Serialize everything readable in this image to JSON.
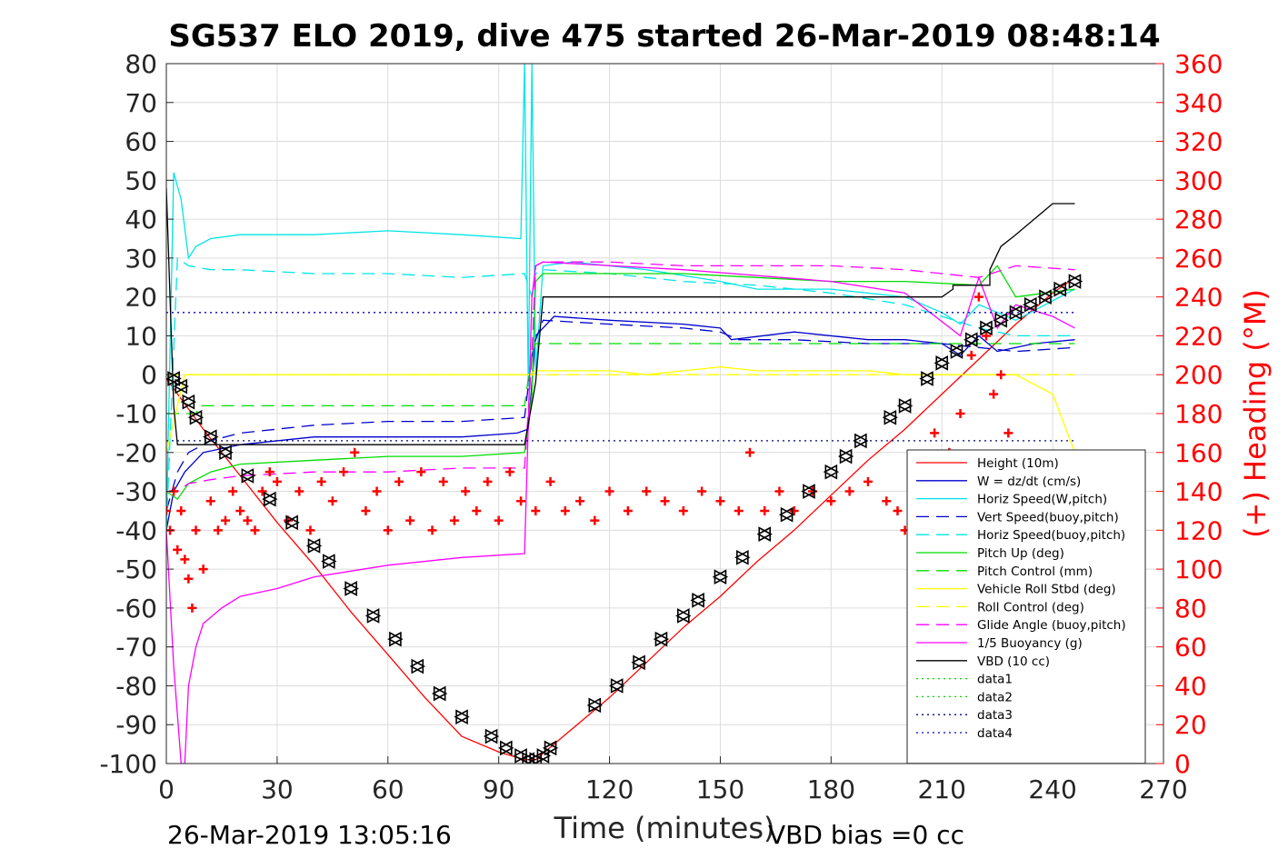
{
  "chart_data": {
    "type": "line",
    "title": "SG537 ELO 2019, dive 475 started 26-Mar-2019 08:48:14",
    "xlabel": "Time (minutes)",
    "ylabel": "",
    "y2label": "(+) Heading (°M)",
    "xlim": [
      0,
      270
    ],
    "ylim": [
      -100,
      80
    ],
    "y2lim": [
      0,
      360
    ],
    "xticks": [
      "0",
      "30",
      "60",
      "90",
      "120",
      "150",
      "180",
      "210",
      "240",
      "270"
    ],
    "yticks": [
      "80",
      "70",
      "60",
      "50",
      "40",
      "30",
      "20",
      "10",
      "0",
      "-10",
      "-20",
      "-30",
      "-40",
      "-50",
      "-60",
      "-70",
      "-80",
      "-90",
      "-100"
    ],
    "y2ticks": [
      "360",
      "340",
      "320",
      "300",
      "280",
      "260",
      "240",
      "220",
      "200",
      "180",
      "160",
      "140",
      "120",
      "100",
      "80",
      "60",
      "40",
      "20",
      "0"
    ],
    "grid": true,
    "legend_position": "bottom-right",
    "footer_left": "26-Mar-2019 13:05:16",
    "footer_right": "VBD bias =0 cc",
    "series": [
      {
        "name": "Height (10m)",
        "color": "#ff0000",
        "style": "solid",
        "x": [
          0,
          10,
          20,
          30,
          40,
          50,
          60,
          70,
          80,
          90,
          97,
          100,
          110,
          120,
          130,
          140,
          150,
          160,
          170,
          180,
          190,
          200,
          210,
          220,
          230,
          240,
          246
        ],
        "y": [
          -1,
          -14,
          -26,
          -38,
          -49,
          -61,
          -72,
          -83,
          -93,
          -97,
          -99,
          -99,
          -91,
          -83,
          -74,
          -65,
          -57,
          -48,
          -40,
          -31,
          -22,
          -14,
          -5,
          4,
          13,
          21,
          25
        ]
      },
      {
        "name": "W = dz/dt (cm/s)",
        "color": "#0000cc",
        "style": "solid",
        "x": [
          0,
          2,
          5,
          10,
          20,
          40,
          60,
          80,
          95,
          98,
          100,
          105,
          120,
          140,
          150,
          153,
          170,
          190,
          200,
          210,
          215,
          220,
          225,
          235,
          246
        ],
        "y": [
          -40,
          -30,
          -25,
          -20,
          -18,
          -16,
          -16,
          -16,
          -15,
          -14,
          10,
          15,
          14,
          13,
          12,
          9,
          11,
          9,
          9,
          8,
          5,
          10,
          6,
          8,
          9
        ]
      },
      {
        "name": "Horiz Speed(W,pitch)",
        "color": "#00e5e5",
        "style": "solid",
        "x": [
          0,
          2,
          4,
          6,
          8,
          12,
          20,
          40,
          60,
          80,
          96,
          97,
          98,
          99,
          100,
          102,
          110,
          130,
          150,
          160,
          180,
          200,
          210,
          215,
          220,
          230,
          246
        ],
        "y": [
          -40,
          52,
          45,
          30,
          33,
          35,
          36,
          36,
          37,
          36,
          35,
          80,
          -3,
          80,
          0,
          28,
          29,
          27,
          24,
          22,
          22,
          20,
          16,
          13,
          18,
          14,
          22
        ]
      },
      {
        "name": "Vert Speed(buoy,pitch)",
        "color": "#0000cc",
        "style": "dashed",
        "x": [
          0,
          3,
          6,
          12,
          20,
          40,
          60,
          80,
          97,
          99,
          100,
          102,
          120,
          140,
          150,
          155,
          170,
          190,
          210,
          230,
          246
        ],
        "y": [
          -35,
          -25,
          -20,
          -17,
          -15,
          -13,
          -12,
          -12,
          -11,
          5,
          9,
          14,
          13,
          12,
          11,
          9,
          9,
          8,
          8,
          6,
          7
        ]
      },
      {
        "name": "Horiz Speed(buoy,pitch)",
        "color": "#00e5e5",
        "style": "dashed",
        "x": [
          0,
          3,
          6,
          12,
          20,
          40,
          60,
          80,
          97,
          99,
          100,
          102,
          120,
          140,
          160,
          180,
          200,
          210,
          220,
          230,
          246
        ],
        "y": [
          -40,
          30,
          28,
          27,
          27,
          26,
          26,
          25,
          26,
          20,
          26,
          27,
          26,
          24,
          23,
          21,
          18,
          15,
          12,
          10,
          10
        ]
      },
      {
        "name": "Pitch Up (deg)",
        "color": "#00dd00",
        "style": "solid",
        "x": [
          0,
          3,
          6,
          12,
          20,
          40,
          60,
          80,
          97,
          99,
          100,
          102,
          120,
          140,
          160,
          180,
          200,
          220,
          225,
          230,
          246
        ],
        "y": [
          -30,
          -32,
          -28,
          -25,
          -23,
          -22,
          -21,
          -21,
          -20,
          -5,
          24,
          26,
          26,
          26,
          25,
          24,
          24,
          23,
          28,
          20,
          22
        ]
      },
      {
        "name": "Pitch Control (mm)",
        "color": "#00dd00",
        "style": "dashed",
        "x": [
          0,
          8,
          9,
          20,
          40,
          60,
          80,
          97,
          99,
          100,
          246
        ],
        "y": [
          -10,
          -10,
          -8,
          -8,
          -8,
          -8,
          -8,
          -8,
          6,
          8,
          8
        ]
      },
      {
        "name": "Vehicle Roll Stbd (deg)",
        "color": "#ffff00",
        "style": "solid",
        "x": [
          0,
          5,
          10,
          20,
          30,
          40,
          50,
          60,
          70,
          80,
          90,
          97,
          98,
          100,
          110,
          120,
          130,
          140,
          150,
          160,
          170,
          180,
          190,
          200,
          210,
          220,
          230,
          240,
          246
        ],
        "y": [
          -20,
          0,
          0,
          0,
          0,
          0,
          0,
          0,
          0,
          0,
          0,
          0,
          0,
          1,
          1,
          1,
          0,
          1,
          2,
          1,
          1,
          1,
          1,
          0,
          0,
          0,
          0,
          -5,
          -20
        ]
      },
      {
        "name": "Roll Control (deg)",
        "color": "#ffff00",
        "style": "dashed",
        "x": [
          0,
          97,
          98,
          246
        ],
        "y": [
          0,
          0,
          0,
          0
        ]
      },
      {
        "name": "Glide Angle (buoy,pitch)",
        "color": "#ff00ff",
        "style": "dashed",
        "x": [
          0,
          3,
          6,
          12,
          20,
          40,
          60,
          80,
          97,
          99,
          100,
          102,
          120,
          140,
          160,
          180,
          200,
          210,
          220,
          230,
          246
        ],
        "y": [
          -30,
          -30,
          -28,
          -27,
          -26,
          -25,
          -25,
          -24,
          -24,
          5,
          28,
          29,
          29,
          28,
          28,
          28,
          27,
          26,
          25,
          28,
          27
        ]
      },
      {
        "name": "1/5 Buoyancy (g)",
        "color": "#ff00ff",
        "style": "solid",
        "x": [
          0,
          2,
          4,
          5,
          6,
          8,
          10,
          15,
          20,
          30,
          40,
          60,
          80,
          97,
          99,
          100,
          102,
          140,
          180,
          200,
          215,
          220,
          225,
          230,
          240,
          246
        ],
        "y": [
          -40,
          -75,
          -100,
          -100,
          -80,
          -70,
          -64,
          -60,
          -57,
          -55,
          -52,
          -49,
          -47,
          -46,
          20,
          28,
          29,
          27,
          24,
          21,
          10,
          25,
          12,
          18,
          15,
          12
        ]
      },
      {
        "name": "VBD (10 cc)",
        "color": "#000000",
        "style": "solid",
        "x": [
          0,
          2,
          3,
          97,
          100,
          102,
          210,
          213,
          213,
          223,
          223,
          226,
          230,
          235,
          240,
          246
        ],
        "y": [
          48,
          -8,
          -18,
          -18,
          -2,
          20,
          20,
          22,
          23,
          23,
          27,
          33,
          36,
          40,
          44,
          44
        ]
      },
      {
        "name": "data1",
        "color": "#00dd00",
        "style": "dotted",
        "x": [],
        "y": []
      },
      {
        "name": "data2",
        "color": "#00dd00",
        "style": "dotted",
        "x": [],
        "y": []
      },
      {
        "name": "data3",
        "color": "#000080",
        "style": "dotted",
        "x": [
          0,
          246
        ],
        "y": [
          -17,
          -17
        ]
      },
      {
        "name": "data4",
        "color": "#0000cc",
        "style": "dotted",
        "x": [
          0,
          246
        ],
        "y": [
          16,
          16
        ]
      }
    ],
    "heading": {
      "name": "(+) Heading",
      "color": "#ff0000",
      "axis": "right",
      "marker": "+",
      "x": [
        0,
        1,
        2,
        3,
        4,
        5,
        6,
        7,
        8,
        10,
        12,
        14,
        16,
        18,
        20,
        22,
        24,
        26,
        28,
        30,
        33,
        36,
        39,
        42,
        45,
        48,
        51,
        54,
        57,
        60,
        63,
        66,
        69,
        72,
        75,
        78,
        81,
        84,
        87,
        90,
        93,
        96,
        100,
        104,
        108,
        112,
        116,
        120,
        125,
        130,
        135,
        140,
        145,
        150,
        155,
        158,
        162,
        166,
        170,
        175,
        180,
        185,
        190,
        195,
        198,
        200,
        205,
        208,
        212,
        215,
        218,
        220,
        222,
        224,
        226,
        228
      ],
      "y": [
        130,
        120,
        140,
        110,
        130,
        105,
        95,
        80,
        120,
        100,
        135,
        120,
        125,
        140,
        130,
        125,
        120,
        140,
        150,
        145,
        125,
        140,
        120,
        145,
        135,
        150,
        160,
        130,
        140,
        120,
        145,
        125,
        150,
        120,
        145,
        125,
        140,
        130,
        145,
        125,
        150,
        135,
        130,
        145,
        130,
        135,
        125,
        140,
        130,
        140,
        135,
        130,
        140,
        135,
        130,
        160,
        130,
        140,
        130,
        140,
        135,
        140,
        145,
        135,
        130,
        120,
        150,
        170,
        160,
        180,
        210,
        240,
        220,
        190,
        200,
        170
      ]
    },
    "markers": {
      "name": "Depth markers",
      "color": "#000000",
      "shape": "triangle",
      "x": [
        2,
        4,
        6,
        8,
        12,
        16,
        22,
        28,
        34,
        40,
        44,
        50,
        56,
        62,
        68,
        74,
        80,
        88,
        92,
        96,
        98,
        100,
        102,
        104,
        116,
        122,
        128,
        134,
        140,
        144,
        150,
        156,
        162,
        168,
        174,
        180,
        184,
        188,
        196,
        200,
        206,
        210,
        214,
        218,
        222,
        226,
        230,
        234,
        238,
        242,
        246
      ],
      "y": [
        -1,
        -3,
        -7,
        -11,
        -16,
        -20,
        -26,
        -32,
        -38,
        -44,
        -48,
        -55,
        -62,
        -68,
        -75,
        -82,
        -88,
        -93,
        -96,
        -98,
        -99,
        -99,
        -98,
        -96,
        -85,
        -80,
        -74,
        -68,
        -62,
        -58,
        -52,
        -47,
        -41,
        -36,
        -30,
        -25,
        -21,
        -17,
        -11,
        -8,
        -1,
        3,
        6,
        9,
        12,
        14,
        16,
        18,
        20,
        22,
        24
      ]
    }
  }
}
